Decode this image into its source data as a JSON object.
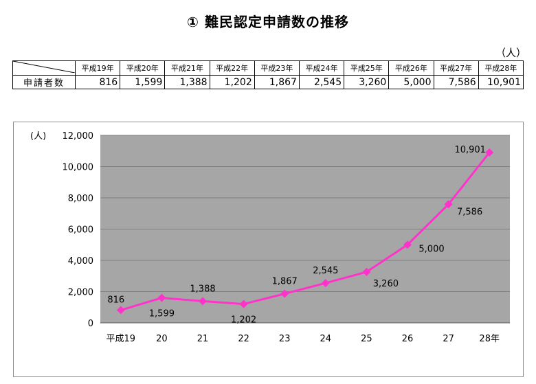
{
  "title": "① 難民認定申請数の推移",
  "unit": "（人）",
  "table": {
    "row_label": "申請者数",
    "headers": [
      "平成19年",
      "平成20年",
      "平成21年",
      "平成22年",
      "平成23年",
      "平成24年",
      "平成25年",
      "平成26年",
      "平成27年",
      "平成28年"
    ],
    "values": [
      "816",
      "1,599",
      "1,388",
      "1,202",
      "1,867",
      "2,545",
      "3,260",
      "5,000",
      "7,586",
      "10,901"
    ]
  },
  "colors": {
    "plot_background": "#a6a6a6",
    "series_line": "#ff33cc",
    "gridline": "#7f7f7f"
  },
  "chart_data": {
    "type": "line",
    "y_unit_label": "(人)",
    "categories": [
      "平成19",
      "20",
      "21",
      "22",
      "23",
      "24",
      "25",
      "26",
      "27",
      "28年"
    ],
    "series": [
      {
        "values": [
          816,
          1599,
          1388,
          1202,
          1867,
          2545,
          3260,
          5000,
          7586,
          10901
        ],
        "marker": "diamond"
      }
    ],
    "data_labels": [
      "816",
      "1,599",
      "1,388",
      "1,202",
      "1,867",
      "2,545",
      "3,260",
      "5,000",
      "7,586",
      "10,901"
    ],
    "ylim": [
      0,
      12000
    ],
    "y_ticks": [
      0,
      2000,
      4000,
      6000,
      8000,
      10000,
      12000
    ],
    "y_tick_labels": [
      "0",
      "2,000",
      "4,000",
      "6,000",
      "8,000",
      "10,000",
      "12,000"
    ],
    "grid": true,
    "legend": false
  }
}
